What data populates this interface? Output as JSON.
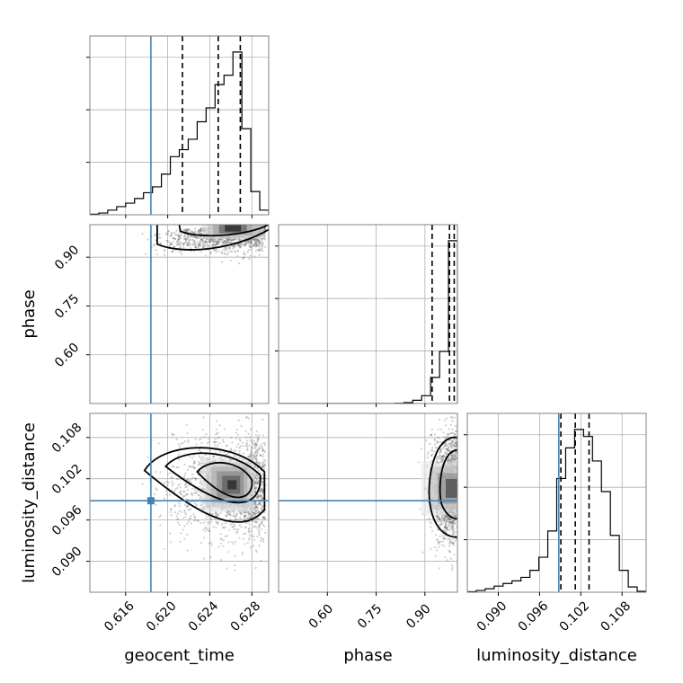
{
  "chart_data": {
    "type": "corner",
    "parameters": [
      "geocent_time",
      "phase",
      "luminosity_distance"
    ],
    "ranges": {
      "geocent_time": [
        0.6126,
        0.6296
      ],
      "phase": [
        0.45,
        1.0
      ],
      "luminosity_distance": [
        0.0855,
        0.1115
      ]
    },
    "truth": {
      "geocent_time": 0.6184,
      "phase": null,
      "luminosity_distance": 0.0988
    },
    "quantiles": {
      "geocent_time": [
        0.6214,
        0.6248,
        0.6269
      ],
      "phase": [
        0.9222,
        0.9756,
        0.9901
      ],
      "luminosity_distance": [
        0.0991,
        0.1012,
        0.1032
      ]
    },
    "tick_labels": {
      "geocent_time": [
        "0.616",
        "0.620",
        "0.624",
        "0.628"
      ],
      "phase": [
        "0.60",
        "0.75",
        "0.90"
      ],
      "luminosity_distance": [
        "0.090",
        "0.096",
        "0.102",
        "0.108"
      ]
    },
    "histograms": {
      "geocent_time": {
        "edges": [
          0.6126,
          0.61345,
          0.6143,
          0.61515,
          0.616,
          0.61685,
          0.6177,
          0.61855,
          0.6194,
          0.62025,
          0.6211,
          0.62195,
          0.6228,
          0.62365,
          0.6245,
          0.62535,
          0.6262,
          0.62705,
          0.6279,
          0.62875,
          0.6296
        ],
        "counts": [
          0.5,
          1.5,
          4,
          7,
          10,
          14,
          19,
          24,
          35,
          50,
          56,
          65,
          80,
          92,
          112,
          120,
          140,
          74,
          20,
          4
        ]
      },
      "phase": {
        "edges": [
          0.45,
          0.4775,
          0.505,
          0.5325,
          0.56,
          0.5875,
          0.615,
          0.6425,
          0.67,
          0.6975,
          0.725,
          0.7525,
          0.78,
          0.8075,
          0.835,
          0.8625,
          0.89,
          0.9175,
          0.945,
          0.9725,
          1.0
        ],
        "counts": [
          0,
          0,
          0,
          0,
          0,
          0,
          0,
          0,
          0,
          0,
          0,
          0,
          0,
          0.3,
          1.5,
          5,
          12,
          40,
          80,
          250
        ]
      },
      "luminosity_distance": {
        "edges": [
          0.0855,
          0.0868,
          0.0881,
          0.0894,
          0.0907,
          0.092,
          0.0933,
          0.0946,
          0.0959,
          0.0972,
          0.0985,
          0.0998,
          0.1011,
          0.1024,
          0.1037,
          0.105,
          0.1063,
          0.1076,
          0.1089,
          0.1102,
          0.1115
        ],
        "counts": [
          0.5,
          2,
          4,
          7,
          10,
          13,
          17,
          25,
          40,
          70,
          130,
          165,
          186,
          178,
          150,
          115,
          65,
          25,
          6,
          1
        ]
      }
    },
    "grid": true
  }
}
